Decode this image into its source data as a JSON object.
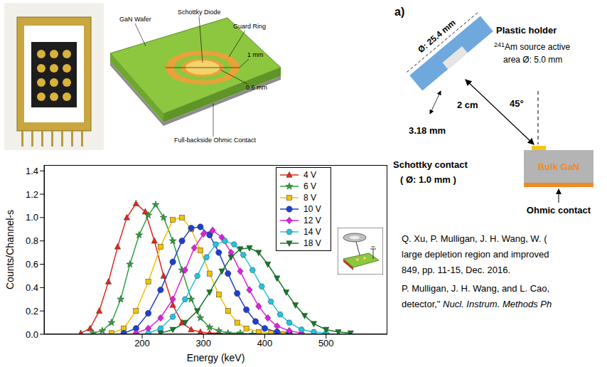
{
  "schematic": {
    "labels": {
      "wafer": "GaN Wafer",
      "diode": "Schottky Diode",
      "guard_ring": "Guard Ring",
      "outer_diameter": "1 mm",
      "inner_diameter": "0.6 mm",
      "backside": "Full-backside Ohmic Contact"
    }
  },
  "chart_data": {
    "type": "line",
    "x_label": "Energy (keV)",
    "y_label": "Counts/Channel-s",
    "xlim": [
      40,
      600
    ],
    "xticks": [
      200,
      300,
      400,
      500
    ],
    "ylim": [
      0,
      1.45
    ],
    "yticks": [
      {
        "value": 0,
        "label": "0.0"
      },
      0.2,
      0.4,
      0.6,
      0.8,
      {
        "value": 1,
        "label": "1.0"
      },
      1.2,
      1.4
    ],
    "grid": false,
    "legend": "upper right",
    "series": [
      {
        "name": "4 V",
        "color": "#e3261c",
        "marker": "triangle",
        "x": [
          100,
          115,
          130,
          145,
          160,
          175,
          190,
          205,
          220,
          235,
          250,
          265,
          280,
          295,
          310,
          325,
          340
        ],
        "values": [
          0.01,
          0.05,
          0.2,
          0.45,
          0.75,
          1.0,
          1.12,
          1.05,
          0.8,
          0.5,
          0.25,
          0.1,
          0.04,
          0.02,
          0.01,
          0.01,
          0
        ]
      },
      {
        "name": "6 V",
        "color": "#2aa43a",
        "marker": "star",
        "x": [
          120,
          135,
          150,
          165,
          180,
          195,
          210,
          222,
          235,
          250,
          265,
          280,
          295,
          310,
          325,
          340,
          360,
          380
        ],
        "values": [
          0.01,
          0.03,
          0.1,
          0.3,
          0.6,
          0.85,
          1.02,
          1.11,
          1.0,
          0.8,
          0.55,
          0.3,
          0.14,
          0.06,
          0.03,
          0.01,
          0.01,
          0
        ]
      },
      {
        "name": "8 V",
        "color": "#f2c200",
        "marker": "square",
        "x": [
          150,
          170,
          190,
          210,
          230,
          250,
          265,
          280,
          295,
          310,
          325,
          340,
          355,
          370,
          390,
          410,
          430
        ],
        "values": [
          0.01,
          0.05,
          0.2,
          0.45,
          0.75,
          0.98,
          1.0,
          0.9,
          0.72,
          0.52,
          0.34,
          0.2,
          0.1,
          0.05,
          0.02,
          0.01,
          0
        ]
      },
      {
        "name": "10 V",
        "color": "#1f3fd0",
        "marker": "circle",
        "x": [
          170,
          190,
          210,
          230,
          250,
          265,
          280,
          295,
          310,
          325,
          340,
          355,
          370,
          385,
          400,
          420,
          440
        ],
        "values": [
          0.01,
          0.05,
          0.18,
          0.38,
          0.62,
          0.8,
          0.91,
          0.92,
          0.85,
          0.7,
          0.52,
          0.35,
          0.21,
          0.11,
          0.05,
          0.02,
          0.01
        ]
      },
      {
        "name": "12 V",
        "color": "#e01ee0",
        "marker": "diamond",
        "x": [
          190,
          210,
          230,
          250,
          270,
          285,
          300,
          315,
          330,
          345,
          360,
          375,
          390,
          405,
          420,
          440,
          460
        ],
        "values": [
          0.01,
          0.05,
          0.14,
          0.3,
          0.55,
          0.74,
          0.86,
          0.89,
          0.83,
          0.7,
          0.54,
          0.38,
          0.24,
          0.14,
          0.07,
          0.03,
          0.01
        ]
      },
      {
        "name": "14 V",
        "color": "#22c4e0",
        "marker": "hexagon",
        "x": [
          210,
          230,
          250,
          270,
          290,
          305,
          320,
          335,
          350,
          365,
          380,
          395,
          410,
          425,
          440,
          460,
          480,
          500
        ],
        "values": [
          0.01,
          0.05,
          0.15,
          0.3,
          0.5,
          0.66,
          0.77,
          0.8,
          0.77,
          0.68,
          0.55,
          0.41,
          0.28,
          0.17,
          0.1,
          0.04,
          0.02,
          0.01
        ]
      },
      {
        "name": "18 V",
        "color": "#137a26",
        "marker": "triangle-down",
        "x": [
          230,
          250,
          270,
          290,
          310,
          330,
          345,
          360,
          375,
          390,
          405,
          420,
          435,
          450,
          465,
          480,
          500,
          520,
          540
        ],
        "values": [
          0.01,
          0.04,
          0.1,
          0.2,
          0.36,
          0.54,
          0.66,
          0.73,
          0.74,
          0.7,
          0.6,
          0.48,
          0.36,
          0.25,
          0.16,
          0.09,
          0.04,
          0.02,
          0.01
        ]
      }
    ]
  },
  "setup_diagram": {
    "panel": "a)",
    "holder_diameter": "Ø: 25.4 mm",
    "holder": "Plastic holder",
    "source_mass_number": "241",
    "source_line1": "Am source active",
    "source_line2": "area Ø: 5.0 mm",
    "source_gap": "3.18 mm",
    "distance": "2 cm",
    "angle": "45°",
    "contact": "Schottky contact",
    "contact_diameter": "( Ø: 1.0 mm )",
    "bulk": "Bulk GaN",
    "ohmic": "Ohmic contact"
  },
  "references": [
    {
      "plain": "Q. Xu, P. Mulligan, J. H. Wang, W. (",
      "italic": null
    },
    {
      "plain": "large depletion region and improved",
      "italic": null
    },
    {
      "plain": "849, pp. 11-15, Dec. 2016.",
      "italic": null
    },
    {
      "plain": "P. Mulligan, J. H. Wang, and L. Cao,",
      "italic": null
    },
    {
      "plain": "detector,\" ",
      "italic": "Nucl. Instrum. Methods Ph"
    }
  ]
}
